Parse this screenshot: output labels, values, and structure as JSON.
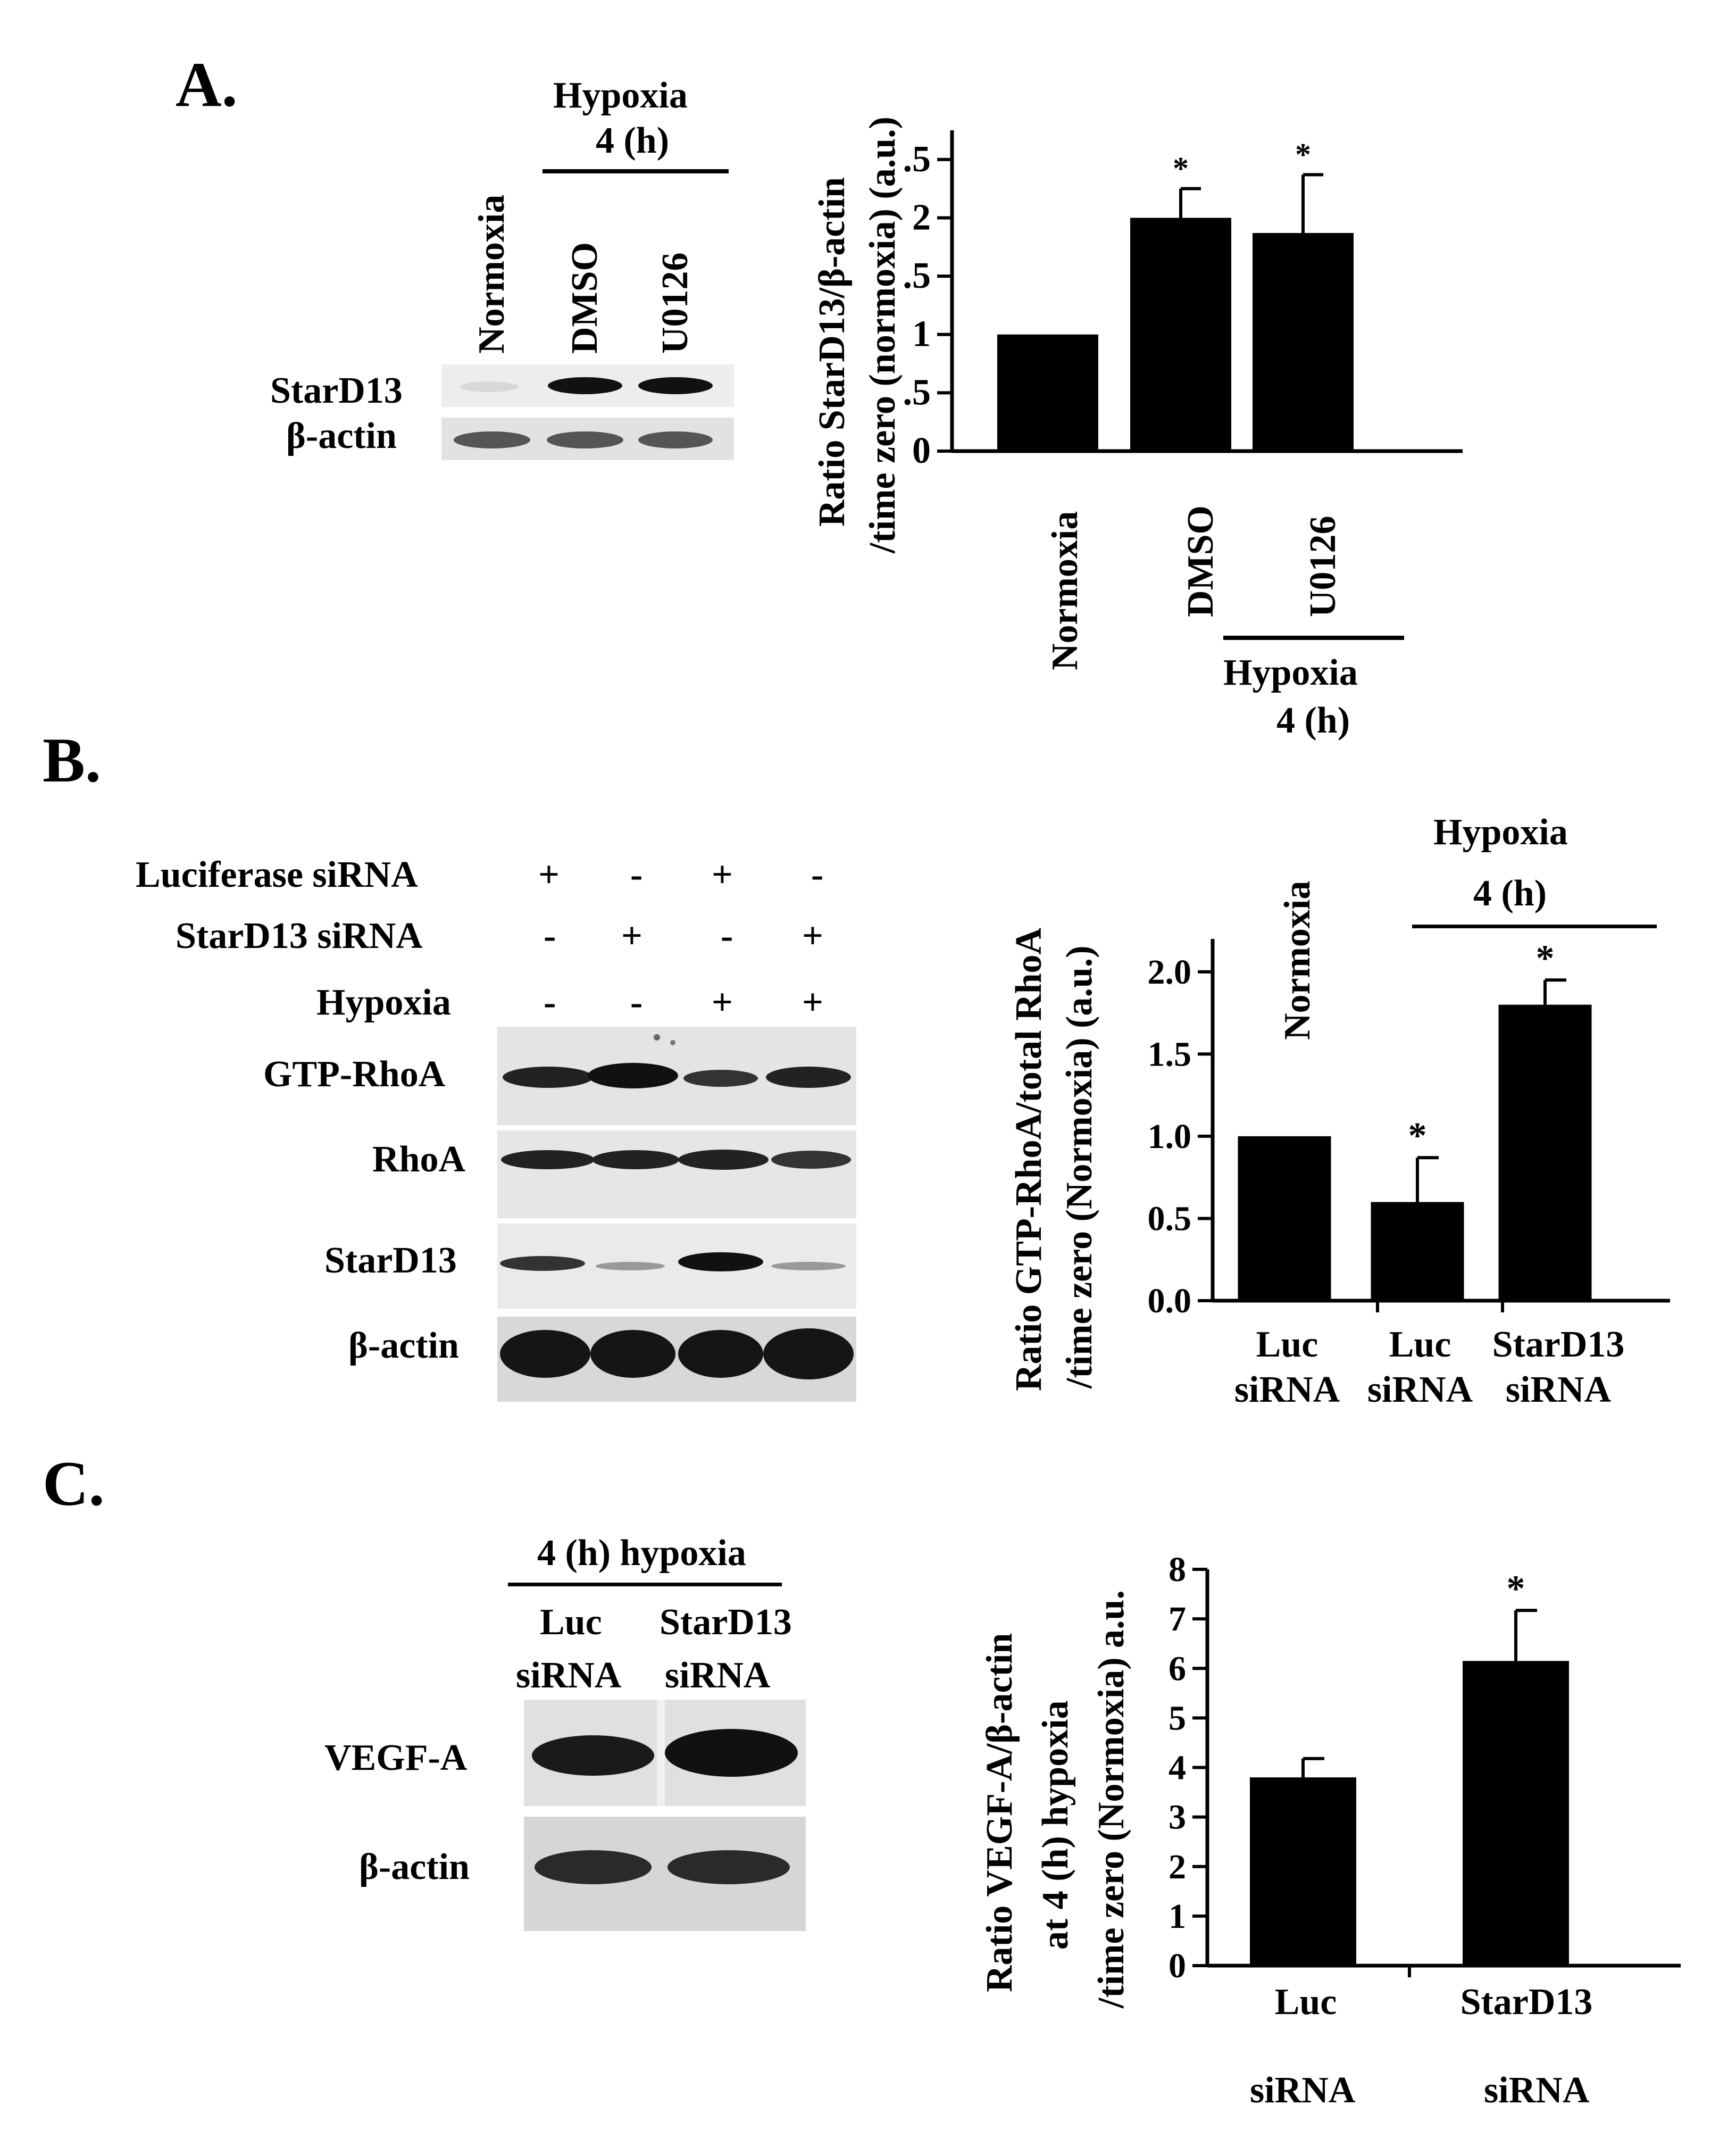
{
  "panels": {
    "A": {
      "letter": "A.",
      "blot": {
        "group_header_line1": "Hypoxia",
        "group_header_line2": "4 (h)",
        "lanes": [
          "Normoxia",
          "DMSO",
          "U0126"
        ],
        "rows": [
          "StarD13",
          "β-actin"
        ]
      },
      "chart": {
        "ylabel_line1": "Ratio StarD13/β-actin",
        "ylabel_line2": "/time zero (normoxia) (a.u.)",
        "group_line1": "Hypoxia",
        "group_line2": "4 (h)"
      }
    },
    "B": {
      "letter": "B.",
      "blot": {
        "treatments": [
          {
            "label": "Luciferase siRNA",
            "signs": [
              "+",
              "-",
              "+",
              "-"
            ]
          },
          {
            "label": "StarD13 siRNA",
            "signs": [
              "-",
              "+",
              "-",
              "+"
            ]
          },
          {
            "label": "Hypoxia",
            "signs": [
              "-",
              "-",
              "+",
              "+"
            ]
          }
        ],
        "rows": [
          "GTP-RhoA",
          "RhoA",
          "StarD13",
          "β-actin"
        ]
      },
      "chart": {
        "ylabel_line1": "Ratio GTP-RhoA/total RhoA",
        "ylabel_line2": "/time zero (Normoxia) (a.u.)",
        "normoxia_label": "Normoxia",
        "group_line1": "Hypoxia",
        "group_line2": "4 (h)",
        "xlabels": [
          [
            "Luc",
            "siRNA"
          ],
          [
            "Luc",
            "siRNA"
          ],
          [
            "StarD13",
            "siRNA"
          ]
        ]
      }
    },
    "C": {
      "letter": "C.",
      "blot": {
        "header": "4 (h)  hypoxia",
        "lanes": [
          [
            "Luc",
            "siRNA"
          ],
          [
            "StarD13",
            "siRNA"
          ]
        ],
        "rows": [
          "VEGF-A",
          "β-actin"
        ]
      },
      "chart": {
        "ylabel_line1": "Ratio VEGF-A/β-actin",
        "ylabel_line2": "at  4 (h)  hypoxia",
        "ylabel_line3": "/time zero (Normoxia) a.u.",
        "xlabels": [
          [
            "Luc",
            "siRNA"
          ],
          [
            "StarD13",
            "siRNA"
          ]
        ]
      }
    }
  },
  "chart_data": [
    {
      "panel": "A",
      "type": "bar",
      "categories": [
        "Normoxia",
        "DMSO",
        "U0126"
      ],
      "values": [
        1.0,
        2.0,
        1.87
      ],
      "errors": [
        0,
        0.25,
        0.5
      ],
      "significance": [
        "",
        "*",
        "*"
      ],
      "yticks": [
        "0",
        "0.5",
        "1",
        "1.5",
        "2",
        "2.5"
      ],
      "ylim": [
        0,
        2.75
      ],
      "ylabel": "Ratio StarD13/β-actin /time zero (normoxia) (a.u.)",
      "bar_color": "#000000"
    },
    {
      "panel": "B",
      "type": "bar",
      "categories": [
        "Luc siRNA",
        "Luc siRNA",
        "StarD13 siRNA"
      ],
      "values": [
        1.0,
        0.6,
        1.8
      ],
      "errors": [
        0,
        0.27,
        0.15
      ],
      "significance": [
        "",
        "*",
        "*"
      ],
      "yticks": [
        "0.0",
        "0.5",
        "1.0",
        "1.5",
        "2.0"
      ],
      "ylim": [
        0,
        2.2
      ],
      "ylabel": "Ratio GTP-RhoA/total RhoA /time zero (Normoxia) (a.u.)",
      "bar_color": "#000000"
    },
    {
      "panel": "C",
      "type": "bar",
      "categories": [
        "Luc siRNA",
        "StarD13 siRNA"
      ],
      "values": [
        3.8,
        6.15
      ],
      "errors": [
        0.38,
        1.02
      ],
      "significance": [
        "",
        "*"
      ],
      "yticks": [
        "0",
        "1",
        "2",
        "3",
        "4",
        "5",
        "6",
        "7",
        "8"
      ],
      "ylim": [
        0,
        8
      ],
      "ylabel": "Ratio VEGF-A/β-actin at 4 (h) hypoxia /time zero (Normoxia) a.u.",
      "bar_color": "#000000"
    }
  ]
}
